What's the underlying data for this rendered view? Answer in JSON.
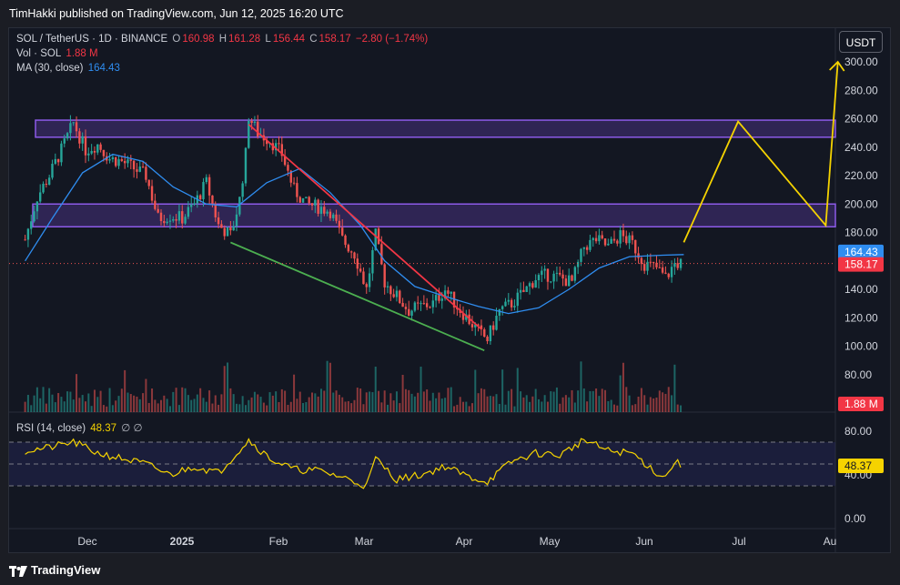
{
  "header": {
    "published": "TimHakki published on TradingView.com, Jun 12, 2025 16:20 UTC"
  },
  "legend": {
    "symbol": "SOL / TetherUS · 1D · BINANCE",
    "o_label": "O",
    "o": "160.98",
    "h_label": "H",
    "h": "161.28",
    "l_label": "L",
    "l": "156.44",
    "c_label": "C",
    "c": "158.17",
    "change": "−2.80 (−1.74%)",
    "vol_label": "Vol · SOL",
    "vol": "1.88 M",
    "ma_label": "MA (30, close)",
    "ma": "164.43"
  },
  "rsi": {
    "label": "RSI (14, close)",
    "value": "48.37",
    "icons": "∅ ∅"
  },
  "currency_button": "USDT",
  "footer": {
    "brand": "TradingView"
  },
  "colors": {
    "up": "#26a69a",
    "down": "#ef5350",
    "ma": "#2f8df0",
    "zone": "#7b4dd6",
    "red_line": "#f23645",
    "green_line": "#4caf50",
    "projection": "#f5d300",
    "rsi_line": "#f5d300"
  },
  "chart_data": {
    "type": "candlestick",
    "price_axis": {
      "ticks": [
        300,
        280,
        260,
        240,
        220,
        200,
        180,
        140,
        120,
        100,
        80
      ],
      "tick_labels": [
        "300.00",
        "280.00",
        "260.00",
        "240.00",
        "220.00",
        "200.00",
        "180.00",
        "140.00",
        "120.00",
        "100.00",
        "80.00"
      ],
      "ma_badge": "164.43",
      "close_badge": "158.17",
      "vol_badge": "1.88 M"
    },
    "rsi_axis": {
      "tick_labels": [
        "80.00",
        "40.00",
        "0.00"
      ],
      "ticks": [
        80,
        40,
        0
      ],
      "value_badge": "48.37",
      "bands": [
        70,
        50,
        30
      ]
    },
    "time_axis": {
      "labels": [
        "Dec",
        "2025",
        "Feb",
        "Mar",
        "Apr",
        "May",
        "Jun",
        "Jul",
        "Au"
      ]
    },
    "resistance_zones": [
      [
        247,
        259
      ],
      [
        184,
        200
      ]
    ],
    "trendlines": [
      {
        "color": "red",
        "points": [
          [
            "2025-01-19",
            256
          ],
          [
            "2025-04-06",
            112
          ]
        ]
      },
      {
        "color": "green",
        "points": [
          [
            "2025-01-13",
            173
          ],
          [
            "2025-04-07",
            97
          ]
        ]
      }
    ],
    "projection": [
      [
        "2025-06-12",
        173
      ],
      [
        "2025-06-30",
        258
      ],
      [
        "2025-07-29",
        185
      ],
      [
        "2025-08-02",
        300
      ]
    ],
    "close_series": [
      [
        "2024-11-06",
        175
      ],
      [
        "2024-11-10",
        205
      ],
      [
        "2024-11-14",
        220
      ],
      [
        "2024-11-18",
        238
      ],
      [
        "2024-11-22",
        257
      ],
      [
        "2024-11-26",
        238
      ],
      [
        "2024-11-30",
        242
      ],
      [
        "2024-12-04",
        232
      ],
      [
        "2024-12-08",
        230
      ],
      [
        "2024-12-12",
        225
      ],
      [
        "2024-12-16",
        220
      ],
      [
        "2024-12-20",
        190
      ],
      [
        "2024-12-24",
        192
      ],
      [
        "2024-12-28",
        190
      ],
      [
        "2025-01-01",
        200
      ],
      [
        "2025-01-05",
        215
      ],
      [
        "2025-01-09",
        185
      ],
      [
        "2025-01-13",
        178
      ],
      [
        "2025-01-16",
        203
      ],
      [
        "2025-01-18",
        235
      ],
      [
        "2025-01-19",
        262
      ],
      [
        "2025-01-22",
        250
      ],
      [
        "2025-01-26",
        245
      ],
      [
        "2025-01-30",
        235
      ],
      [
        "2025-02-03",
        210
      ],
      [
        "2025-02-07",
        200
      ],
      [
        "2025-02-11",
        198
      ],
      [
        "2025-02-15",
        195
      ],
      [
        "2025-02-19",
        175
      ],
      [
        "2025-02-23",
        165
      ],
      [
        "2025-02-27",
        140
      ],
      [
        "2025-03-02",
        178
      ],
      [
        "2025-03-05",
        145
      ],
      [
        "2025-03-09",
        135
      ],
      [
        "2025-03-13",
        125
      ],
      [
        "2025-03-17",
        128
      ],
      [
        "2025-03-21",
        130
      ],
      [
        "2025-03-25",
        140
      ],
      [
        "2025-03-29",
        128
      ],
      [
        "2025-04-02",
        118
      ],
      [
        "2025-04-06",
        108
      ],
      [
        "2025-04-08",
        105
      ],
      [
        "2025-04-12",
        125
      ],
      [
        "2025-04-16",
        130
      ],
      [
        "2025-04-20",
        138
      ],
      [
        "2025-04-24",
        148
      ],
      [
        "2025-04-28",
        150
      ],
      [
        "2025-05-02",
        148
      ],
      [
        "2025-05-06",
        145
      ],
      [
        "2025-05-10",
        170
      ],
      [
        "2025-05-14",
        175
      ],
      [
        "2025-05-18",
        170
      ],
      [
        "2025-05-22",
        178
      ],
      [
        "2025-05-26",
        172
      ],
      [
        "2025-05-30",
        158
      ],
      [
        "2025-06-03",
        155
      ],
      [
        "2025-06-06",
        148
      ],
      [
        "2025-06-09",
        158
      ],
      [
        "2025-06-12",
        158.17
      ]
    ],
    "ma30_series": [
      [
        "2024-11-06",
        160
      ],
      [
        "2024-11-15",
        190
      ],
      [
        "2024-11-25",
        222
      ],
      [
        "2024-12-05",
        235
      ],
      [
        "2024-12-15",
        230
      ],
      [
        "2024-12-25",
        212
      ],
      [
        "2025-01-05",
        200
      ],
      [
        "2025-01-15",
        198
      ],
      [
        "2025-01-25",
        215
      ],
      [
        "2025-02-05",
        225
      ],
      [
        "2025-02-15",
        208
      ],
      [
        "2025-02-25",
        185
      ],
      [
        "2025-03-05",
        160
      ],
      [
        "2025-03-15",
        142
      ],
      [
        "2025-03-25",
        135
      ],
      [
        "2025-04-05",
        128
      ],
      [
        "2025-04-15",
        123
      ],
      [
        "2025-04-25",
        127
      ],
      [
        "2025-05-05",
        140
      ],
      [
        "2025-05-15",
        155
      ],
      [
        "2025-05-25",
        163
      ],
      [
        "2025-06-05",
        164
      ],
      [
        "2025-06-12",
        164.43
      ]
    ],
    "rsi_series": [
      [
        "2024-11-06",
        62
      ],
      [
        "2024-11-14",
        65
      ],
      [
        "2024-11-22",
        70
      ],
      [
        "2024-11-30",
        60
      ],
      [
        "2024-12-08",
        55
      ],
      [
        "2024-12-16",
        50
      ],
      [
        "2024-12-24",
        40
      ],
      [
        "2025-01-01",
        48
      ],
      [
        "2025-01-09",
        42
      ],
      [
        "2025-01-19",
        72
      ],
      [
        "2025-01-26",
        55
      ],
      [
        "2025-02-03",
        45
      ],
      [
        "2025-02-11",
        44
      ],
      [
        "2025-02-19",
        38
      ],
      [
        "2025-02-27",
        30
      ],
      [
        "2025-03-02",
        55
      ],
      [
        "2025-03-09",
        36
      ],
      [
        "2025-03-17",
        40
      ],
      [
        "2025-03-25",
        48
      ],
      [
        "2025-04-02",
        38
      ],
      [
        "2025-04-08",
        34
      ],
      [
        "2025-04-16",
        52
      ],
      [
        "2025-04-24",
        60
      ],
      [
        "2025-05-02",
        58
      ],
      [
        "2025-05-10",
        72
      ],
      [
        "2025-05-18",
        62
      ],
      [
        "2025-05-26",
        60
      ],
      [
        "2025-06-03",
        42
      ],
      [
        "2025-06-06",
        38
      ],
      [
        "2025-06-09",
        52
      ],
      [
        "2025-06-12",
        48.37
      ]
    ]
  }
}
